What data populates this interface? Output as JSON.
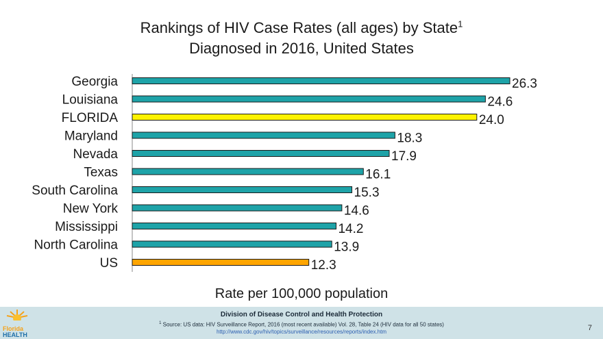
{
  "title": {
    "line1": "Rankings of HIV Case Rates (all ages) by State",
    "superscript": "1",
    "line2": "Diagnosed in 2016, United States"
  },
  "chart_data": {
    "type": "bar",
    "orientation": "horizontal",
    "title": "Rankings of HIV Case Rates (all ages) by State 1 Diagnosed in 2016, United States",
    "xlabel": "Rate per 100,000 population",
    "ylabel": "",
    "xlim": [
      0,
      27
    ],
    "grid": false,
    "legend": "none",
    "categories": [
      "Georgia",
      "Louisiana",
      "FLORIDA",
      "Maryland",
      "Nevada",
      "Texas",
      "South Carolina",
      "New York",
      "Mississippi",
      "North Carolina",
      "US"
    ],
    "values": [
      26.3,
      24.6,
      24.0,
      18.3,
      17.9,
      16.1,
      15.3,
      14.6,
      14.2,
      13.9,
      12.3
    ],
    "value_labels": [
      "26.3",
      "24.6",
      "24.0",
      "18.3",
      "17.9",
      "16.1",
      "15.3",
      "14.6",
      "14.2",
      "13.9",
      "12.3"
    ],
    "bar_colors": [
      "#1ea3a8",
      "#1ea3a8",
      "#fff200",
      "#1ea3a8",
      "#1ea3a8",
      "#1ea3a8",
      "#1ea3a8",
      "#1ea3a8",
      "#1ea3a8",
      "#1ea3a8",
      "#ffa500"
    ]
  },
  "colors": {
    "bar_default": "#1ea3a8",
    "bar_florida": "#fff200",
    "bar_us": "#ffa500",
    "footer_bg": "#cfe2e7"
  },
  "footer": {
    "division": "Division of Disease Control and Health Protection",
    "source_sup": "1",
    "source": "Source: US data: HIV Surveillance Report, 2016 (most recent available) Vol. 28, Table 24 (HIV data for all 50 states)",
    "url": "http://www.cdc.gov/hiv/topics/surveillance/resources/reports/index.htm",
    "page_number": "7",
    "logo_word1": "Florida",
    "logo_word2": "HEALTH",
    "logo_icon": "sun-icon"
  }
}
